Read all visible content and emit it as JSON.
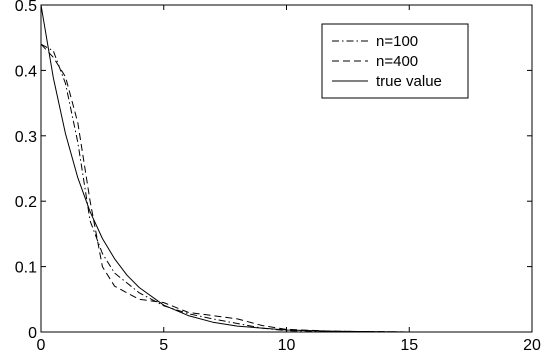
{
  "chart_data": {
    "type": "line",
    "title": "",
    "xlabel": "",
    "ylabel": "",
    "xlim": [
      0,
      20
    ],
    "ylim": [
      0,
      0.5
    ],
    "grid": false,
    "legend_position": "top-right",
    "x_ticks": [
      0,
      5,
      10,
      15,
      20
    ],
    "x_tick_labels": [
      "0",
      "5",
      "10",
      "15",
      "20"
    ],
    "y_ticks": [
      0,
      0.1,
      0.2,
      0.3,
      0.4,
      0.5
    ],
    "y_tick_labels": [
      "0",
      "0.1",
      "0.2",
      "0.3",
      "0.4",
      "0.5"
    ],
    "series": [
      {
        "name": "n=100",
        "style": "dashdot",
        "color": "#000000",
        "x": [
          0,
          0.5,
          1,
          1.5,
          2,
          2.5,
          3,
          3.5,
          4,
          5,
          6,
          7,
          8,
          9,
          10,
          12,
          15,
          20
        ],
        "y": [
          0.44,
          0.43,
          0.38,
          0.29,
          0.17,
          0.12,
          0.09,
          0.075,
          0.06,
          0.04,
          0.028,
          0.02,
          0.013,
          0.006,
          0.002,
          0.001,
          0.0,
          0.0
        ]
      },
      {
        "name": "n=400",
        "style": "dashed",
        "color": "#000000",
        "x": [
          0,
          0.5,
          1,
          1.5,
          2,
          2.5,
          3,
          3.5,
          4,
          5,
          6,
          7,
          8,
          9,
          10,
          12,
          15,
          20
        ],
        "y": [
          0.44,
          0.42,
          0.39,
          0.32,
          0.2,
          0.1,
          0.07,
          0.06,
          0.05,
          0.045,
          0.03,
          0.025,
          0.02,
          0.01,
          0.004,
          0.001,
          0.0,
          0.0
        ]
      },
      {
        "name": "true value",
        "style": "solid",
        "color": "#000000",
        "x": [
          0,
          0.5,
          1,
          1.5,
          2,
          2.5,
          3,
          3.5,
          4,
          5,
          6,
          7,
          8,
          9,
          10,
          12,
          15,
          20
        ],
        "y": [
          0.5,
          0.389,
          0.303,
          0.236,
          0.184,
          0.143,
          0.112,
          0.087,
          0.068,
          0.041,
          0.025,
          0.015,
          0.009,
          0.006,
          0.003,
          0.001,
          0.0,
          0.0
        ]
      }
    ]
  }
}
